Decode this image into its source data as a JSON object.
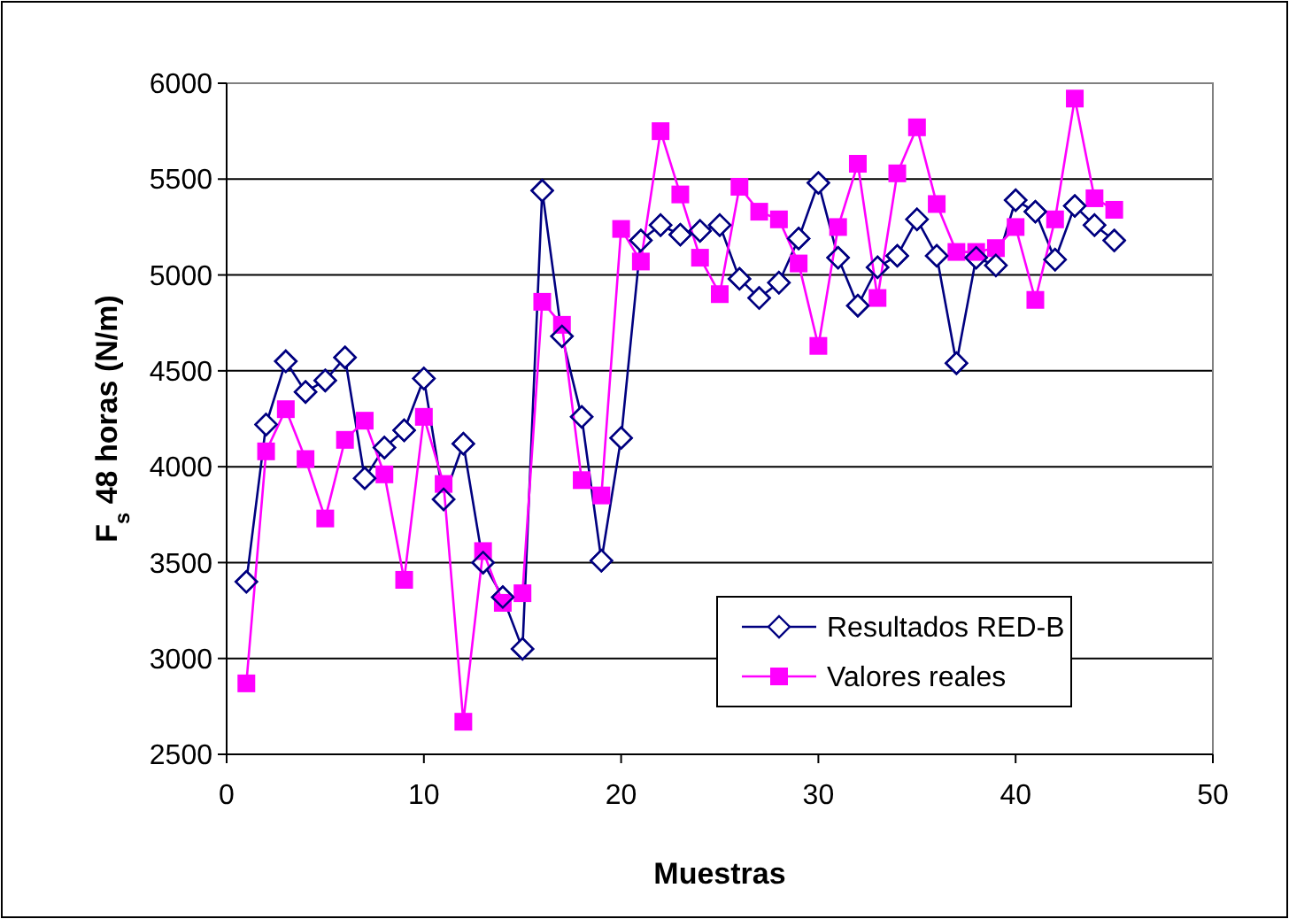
{
  "chart_data": {
    "type": "line",
    "xlabel": "Muestras",
    "ylabel": "F$_{s}$ 48 horas (N/m)",
    "x": [
      1,
      2,
      3,
      4,
      5,
      6,
      7,
      8,
      9,
      10,
      11,
      12,
      13,
      14,
      15,
      16,
      17,
      18,
      19,
      20,
      21,
      22,
      23,
      24,
      25,
      26,
      27,
      28,
      29,
      30,
      31,
      32,
      33,
      34,
      35,
      36,
      37,
      38,
      39,
      40,
      41,
      42,
      43,
      44,
      45
    ],
    "xlim": [
      0,
      50
    ],
    "xticks": [
      0,
      10,
      20,
      30,
      40,
      50
    ],
    "ylim": [
      2500,
      6000
    ],
    "yticks": [
      2500,
      3000,
      3500,
      4000,
      4500,
      5000,
      5500,
      6000
    ],
    "grid": "y",
    "legend": "bottom right",
    "series": [
      {
        "name": "Resultados RED-B",
        "color": "#000080",
        "marker": "diamond",
        "values": [
          3400,
          4220,
          4550,
          4390,
          4450,
          4570,
          3940,
          4100,
          4190,
          4460,
          3830,
          4120,
          3500,
          3320,
          3050,
          5440,
          4680,
          4260,
          3510,
          4150,
          5180,
          5260,
          5210,
          5230,
          5260,
          4980,
          4880,
          4960,
          5190,
          5480,
          5090,
          4840,
          5040,
          5100,
          5290,
          5100,
          4540,
          5090,
          5050,
          5390,
          5330,
          5080,
          5360,
          5260,
          5180
        ]
      },
      {
        "name": "Valores reales",
        "color": "#ff00ff",
        "marker": "square",
        "values": [
          2870,
          4080,
          4300,
          4040,
          3730,
          4140,
          4240,
          3960,
          3410,
          4260,
          3910,
          2670,
          3560,
          3290,
          3340,
          4860,
          4740,
          3930,
          3850,
          5240,
          5070,
          5750,
          5420,
          5090,
          4900,
          5460,
          5330,
          5290,
          5060,
          4630,
          5250,
          5580,
          4880,
          5530,
          5770,
          5370,
          5120,
          5120,
          5140,
          5250,
          4870,
          5290,
          5920,
          5400,
          5340
        ]
      }
    ]
  }
}
